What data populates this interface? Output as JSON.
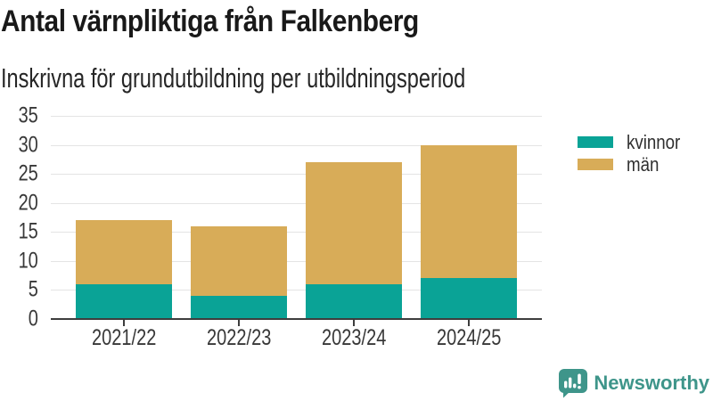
{
  "chart_data": {
    "type": "bar",
    "stacked": true,
    "title": "Antal värnpliktiga från Falkenberg",
    "subtitle": "Inskrivna för grundutbildning per utbildningsperiod",
    "categories": [
      "2021/22",
      "2022/23",
      "2023/24",
      "2024/25"
    ],
    "series": [
      {
        "name": "kvinnor",
        "color": "#0aa396",
        "values": [
          6,
          4,
          6,
          7
        ]
      },
      {
        "name": "män",
        "color": "#d8ac58",
        "values": [
          11,
          12,
          21,
          23
        ]
      }
    ],
    "stack_totals": [
      17,
      16,
      27,
      30
    ],
    "ylim": [
      0,
      35
    ],
    "yticks": [
      0,
      5,
      10,
      15,
      20,
      25,
      30,
      35
    ],
    "grid": true,
    "legend_position": "right-top"
  },
  "branding": {
    "name": "Newsworthy",
    "color": "#3e958a",
    "icon": "bar-chart-speech-bubble-icon"
  },
  "colors": {
    "background": "#ffffff",
    "gridline": "#e4e4e4",
    "axis_line": "#3d3d3d",
    "axis_text": "#383838",
    "title_text": "#191919",
    "subtitle_text": "#262626",
    "legend_text": "#2f2f2f"
  }
}
